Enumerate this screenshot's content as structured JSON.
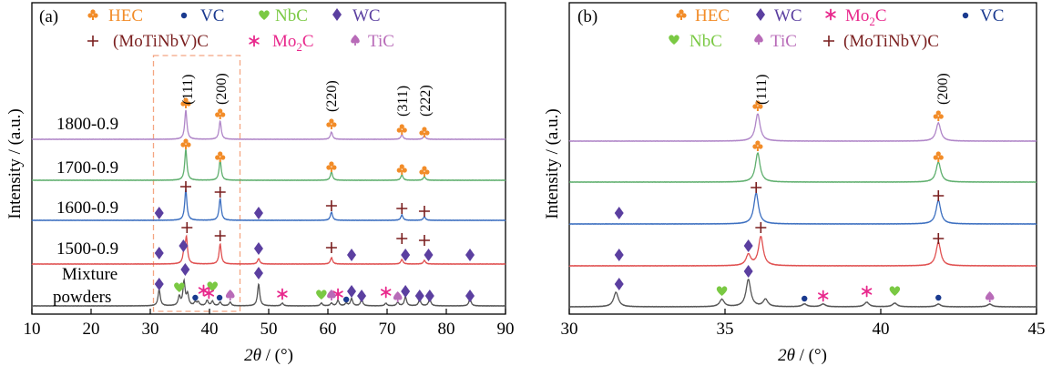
{
  "colors": {
    "HEC": "#F28C28",
    "VC": "#1A3A8F",
    "NbC": "#7AC943",
    "WC": "#5B3FA0",
    "MoTiNbVC": "#7A1F1F",
    "Mo2C": "#E8288C",
    "TiC": "#B86BB8",
    "dash_box": "#F4A582"
  },
  "panel_a": {
    "panel_label": "(a)",
    "ylabel": "Intensity / (a.u.)",
    "xlabel_theta": "2θ",
    "xlabel_unit": " / (°)",
    "legend": {
      "HEC": "HEC",
      "VC": "VC",
      "NbC": "NbC",
      "WC": "WC",
      "MoTiNbVC": "(MoTiNbV)C",
      "Mo2C_main": "Mo",
      "Mo2C_sub": "2",
      "Mo2C_tail": "C",
      "TiC": "TiC"
    },
    "sample_labels": [
      "1800-0.9",
      "1700-0.9",
      "1600-0.9",
      "1500-0.9"
    ],
    "mixture_label_1": "Mixture",
    "mixture_label_2": "powders",
    "hkl": [
      "(111)",
      "(200)",
      "(220)",
      "(311)",
      "(222)"
    ]
  },
  "panel_b": {
    "panel_label": "(b)",
    "ylabel": "Intensity / (a.u.)",
    "xlabel_theta": "2θ",
    "xlabel_unit": " / (°)",
    "legend": {
      "HEC": "HEC",
      "WC": "WC",
      "Mo2C_main": "Mo",
      "Mo2C_sub": "2",
      "Mo2C_tail": "C",
      "VC": "VC",
      "NbC": "NbC",
      "TiC": "TiC",
      "MoTiNbVC": "(MoTiNbV)C"
    },
    "hkl": [
      "(111)",
      "(200)"
    ]
  },
  "chart_data": [
    {
      "type": "line",
      "panel": "(a)",
      "xlabel": "2θ / (°)",
      "ylabel": "Intensity / (a.u.)",
      "xlim": [
        10,
        90
      ],
      "xticks": [
        10,
        20,
        30,
        40,
        50,
        60,
        70,
        80,
        90
      ],
      "highlight_box_x": [
        30.5,
        44.5
      ],
      "series": [
        {
          "name": "1800-0.9",
          "color": "#B086C8",
          "peaks": [
            {
              "x": 36.0,
              "h": 32
            },
            {
              "x": 41.8,
              "h": 20
            },
            {
              "x": 60.6,
              "h": 8
            },
            {
              "x": 72.5,
              "h": 5
            },
            {
              "x": 76.3,
              "h": 4
            }
          ]
        },
        {
          "name": "1700-0.9",
          "color": "#5FAF6E",
          "peaks": [
            {
              "x": 36.0,
              "h": 34
            },
            {
              "x": 41.8,
              "h": 22
            },
            {
              "x": 60.6,
              "h": 9
            },
            {
              "x": 72.5,
              "h": 6
            },
            {
              "x": 76.3,
              "h": 4
            }
          ]
        },
        {
          "name": "1600-0.9",
          "color": "#3C6FC0",
          "peaks": [
            {
              "x": 36.0,
              "h": 34
            },
            {
              "x": 41.8,
              "h": 24
            },
            {
              "x": 60.6,
              "h": 9
            },
            {
              "x": 72.5,
              "h": 6
            },
            {
              "x": 76.3,
              "h": 4
            }
          ]
        },
        {
          "name": "1500-0.9",
          "color": "#E05050",
          "peaks": [
            {
              "x": 35.7,
              "h": 12
            },
            {
              "x": 36.1,
              "h": 28
            },
            {
              "x": 41.8,
              "h": 22
            },
            {
              "x": 48.3,
              "h": 6
            },
            {
              "x": 60.6,
              "h": 7
            },
            {
              "x": 72.5,
              "h": 5
            },
            {
              "x": 76.3,
              "h": 4
            }
          ]
        },
        {
          "name": "Mixture powders",
          "color": "#555555",
          "peaks": [
            {
              "x": 31.5,
              "h": 18
            },
            {
              "x": 34.9,
              "h": 10
            },
            {
              "x": 35.7,
              "h": 26
            },
            {
              "x": 36.3,
              "h": 12
            },
            {
              "x": 37.6,
              "h": 4
            },
            {
              "x": 38.1,
              "h": 4
            },
            {
              "x": 39.6,
              "h": 6
            },
            {
              "x": 40.5,
              "h": 5
            },
            {
              "x": 41.8,
              "h": 4
            },
            {
              "x": 43.5,
              "h": 4
            },
            {
              "x": 48.3,
              "h": 24
            },
            {
              "x": 52.3,
              "h": 3
            },
            {
              "x": 58.9,
              "h": 3
            },
            {
              "x": 60.6,
              "h": 3
            },
            {
              "x": 61.7,
              "h": 6
            },
            {
              "x": 63.1,
              "h": 3
            },
            {
              "x": 64.0,
              "h": 8
            },
            {
              "x": 65.7,
              "h": 7
            },
            {
              "x": 69.8,
              "h": 3
            },
            {
              "x": 71.8,
              "h": 4
            },
            {
              "x": 73.1,
              "h": 10
            },
            {
              "x": 75.5,
              "h": 7
            },
            {
              "x": 77.2,
              "h": 8
            },
            {
              "x": 84.0,
              "h": 8
            }
          ]
        }
      ]
    },
    {
      "type": "line",
      "panel": "(b)",
      "xlabel": "2θ / (°)",
      "ylabel": "Intensity / (a.u.)",
      "xlim": [
        30,
        45
      ],
      "xticks": [
        30,
        35,
        40,
        45
      ],
      "series": [
        {
          "name": "1800-0.9",
          "color": "#B086C8",
          "peaks": [
            {
              "x": 36.05,
              "h": 30
            },
            {
              "x": 41.85,
              "h": 20
            }
          ]
        },
        {
          "name": "1700-0.9",
          "color": "#5FAF6E",
          "peaks": [
            {
              "x": 36.05,
              "h": 32
            },
            {
              "x": 41.85,
              "h": 22
            }
          ]
        },
        {
          "name": "1600-0.9",
          "color": "#3C6FC0",
          "peaks": [
            {
              "x": 36.0,
              "h": 34
            },
            {
              "x": 41.85,
              "h": 26
            }
          ]
        },
        {
          "name": "1500-0.9",
          "color": "#E05050",
          "peaks": [
            {
              "x": 35.75,
              "h": 12
            },
            {
              "x": 36.15,
              "h": 32
            },
            {
              "x": 41.85,
              "h": 26
            }
          ]
        },
        {
          "name": "Mixture powders",
          "color": "#555555",
          "peaks": [
            {
              "x": 31.5,
              "h": 16
            },
            {
              "x": 34.9,
              "h": 8
            },
            {
              "x": 35.75,
              "h": 30
            },
            {
              "x": 36.3,
              "h": 8
            },
            {
              "x": 37.55,
              "h": 3
            },
            {
              "x": 38.15,
              "h": 3
            },
            {
              "x": 39.55,
              "h": 5
            },
            {
              "x": 40.45,
              "h": 4
            },
            {
              "x": 41.85,
              "h": 3
            },
            {
              "x": 43.5,
              "h": 3
            }
          ]
        }
      ]
    }
  ]
}
